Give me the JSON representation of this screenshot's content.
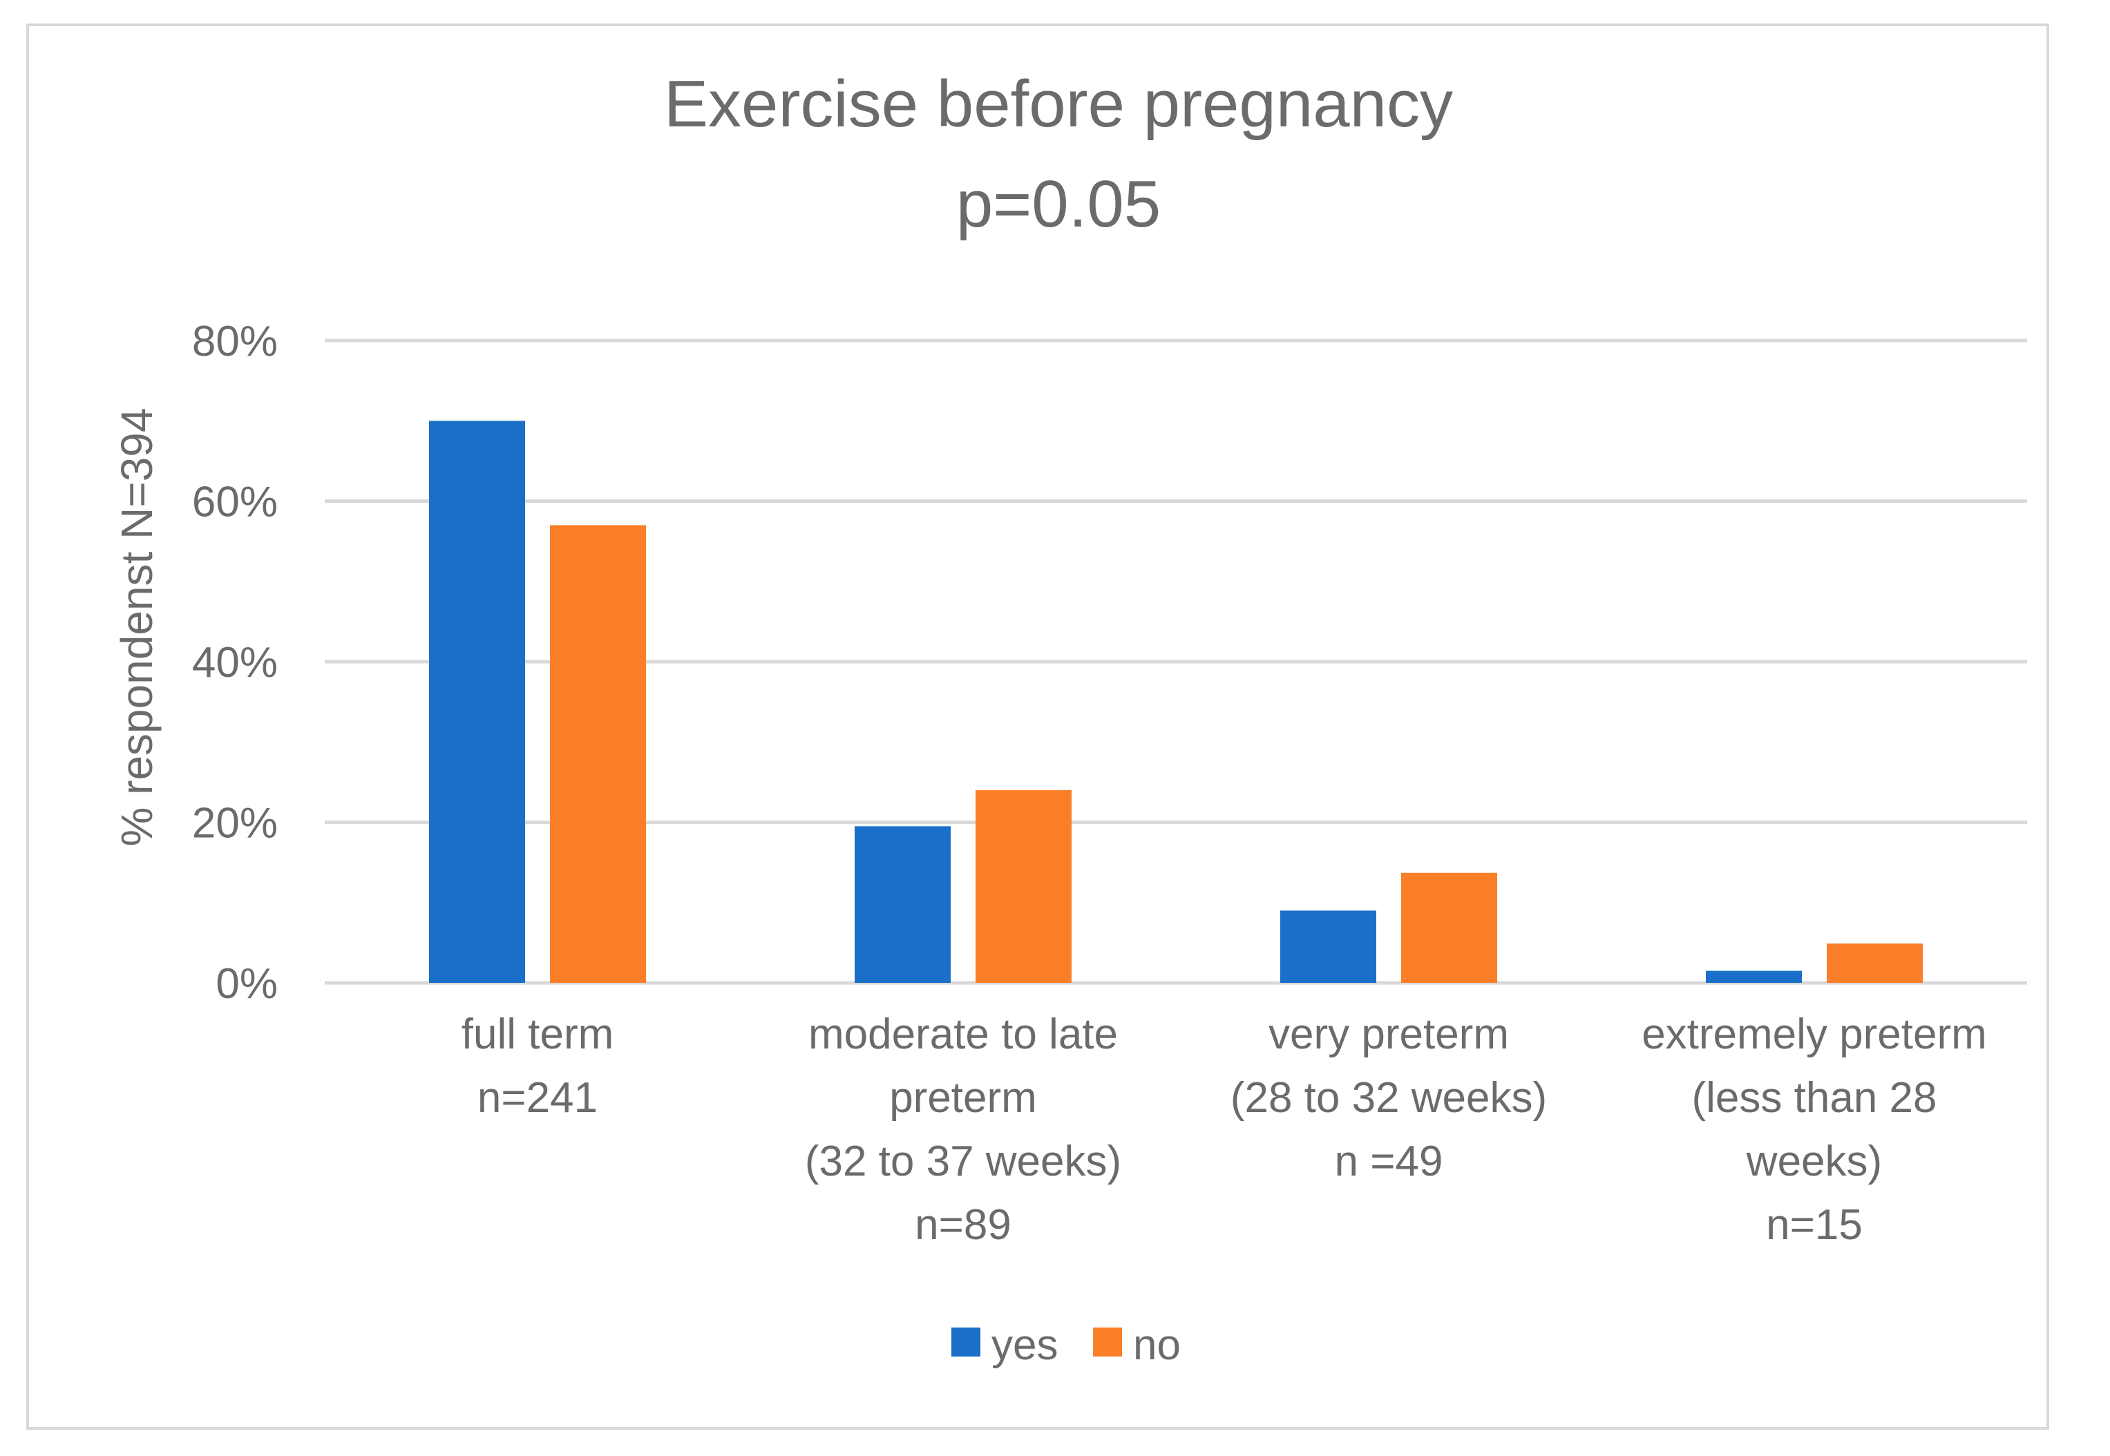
{
  "chart_data": {
    "type": "bar",
    "title_lines": [
      "Exercise before pregnancy",
      "p=0.05"
    ],
    "ylabel": "% respondenst N=394",
    "xlabel": "",
    "ylim": [
      0,
      0.8
    ],
    "yticks": [
      0,
      0.2,
      0.4,
      0.6,
      0.8
    ],
    "ytick_labels": [
      "0%",
      "20%",
      "40%",
      "60%",
      "80%"
    ],
    "grid": true,
    "legend_position": "bottom-center",
    "categories": [
      [
        "full term",
        "n=241"
      ],
      [
        "moderate to late",
        "preterm",
        "(32 to 37 weeks)",
        "n=89"
      ],
      [
        "very preterm",
        "(28 to 32 weeks)",
        "n =49"
      ],
      [
        "extremely preterm",
        "(less than 28",
        "weeks)",
        "n=15"
      ]
    ],
    "series": [
      {
        "name": "yes",
        "color": "#1a70c8",
        "values": [
          0.7,
          0.195,
          0.09,
          0.015
        ]
      },
      {
        "name": "no",
        "color": "#fb7f29",
        "values": [
          0.57,
          0.24,
          0.137,
          0.049
        ]
      }
    ],
    "colors": {
      "grid": "#d9d9d9",
      "text": "#6b6b6b"
    }
  }
}
